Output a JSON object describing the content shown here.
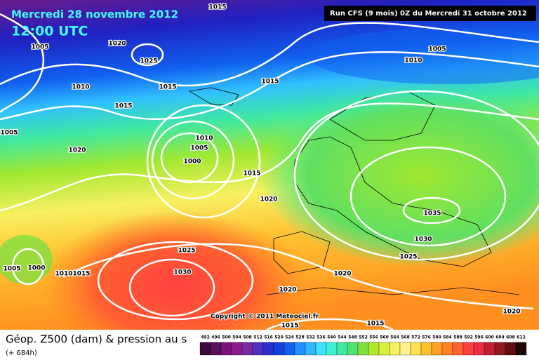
{
  "header": {
    "date": "Mercredi 28 novembre 2012",
    "time": "12:00 UTC",
    "run": "Run CFS (9 mois) 0Z du Mercredi 31 octobre 2012"
  },
  "copyright": "Copyright © 2011 Meteociel.fr",
  "footer": {
    "title": "Géop. Z500 (dam) & pression au s",
    "lead": "(+ 684h)"
  },
  "isobar_labels": [
    "1015",
    "1005",
    "1020",
    "1025",
    "1010",
    "1015",
    "1015",
    "1005",
    "1020",
    "1010",
    "1005",
    "1000",
    "1015",
    "1015",
    "1020",
    "1005",
    "1010",
    "1035",
    "1030",
    "1025",
    "1020",
    "1020",
    "1025",
    "1030",
    "1005",
    "1000",
    "1010",
    "1015",
    "1015",
    "1015",
    "1020"
  ],
  "scale": {
    "labels": [
      492,
      496,
      500,
      504,
      508,
      512,
      516,
      520,
      524,
      528,
      532,
      536,
      540,
      544,
      548,
      552,
      556,
      560,
      564,
      568,
      572,
      576,
      580,
      584,
      588,
      592,
      596,
      600,
      604,
      608,
      612
    ],
    "colors": [
      "#3a0a3a",
      "#5a0f5a",
      "#7a1478",
      "#901a90",
      "#7a2aa0",
      "#5030c0",
      "#2a30d0",
      "#1040e0",
      "#1060f0",
      "#2090ff",
      "#30b8ff",
      "#40e0ff",
      "#40f0d0",
      "#40e8a0",
      "#50e070",
      "#80e040",
      "#b0e830",
      "#d8f040",
      "#f8f060",
      "#fff090",
      "#ffe050",
      "#ffc030",
      "#ffa020",
      "#ff8020",
      "#ff6030",
      "#ff4040",
      "#e83040",
      "#c02030",
      "#901820",
      "#601010",
      "#200808"
    ]
  }
}
